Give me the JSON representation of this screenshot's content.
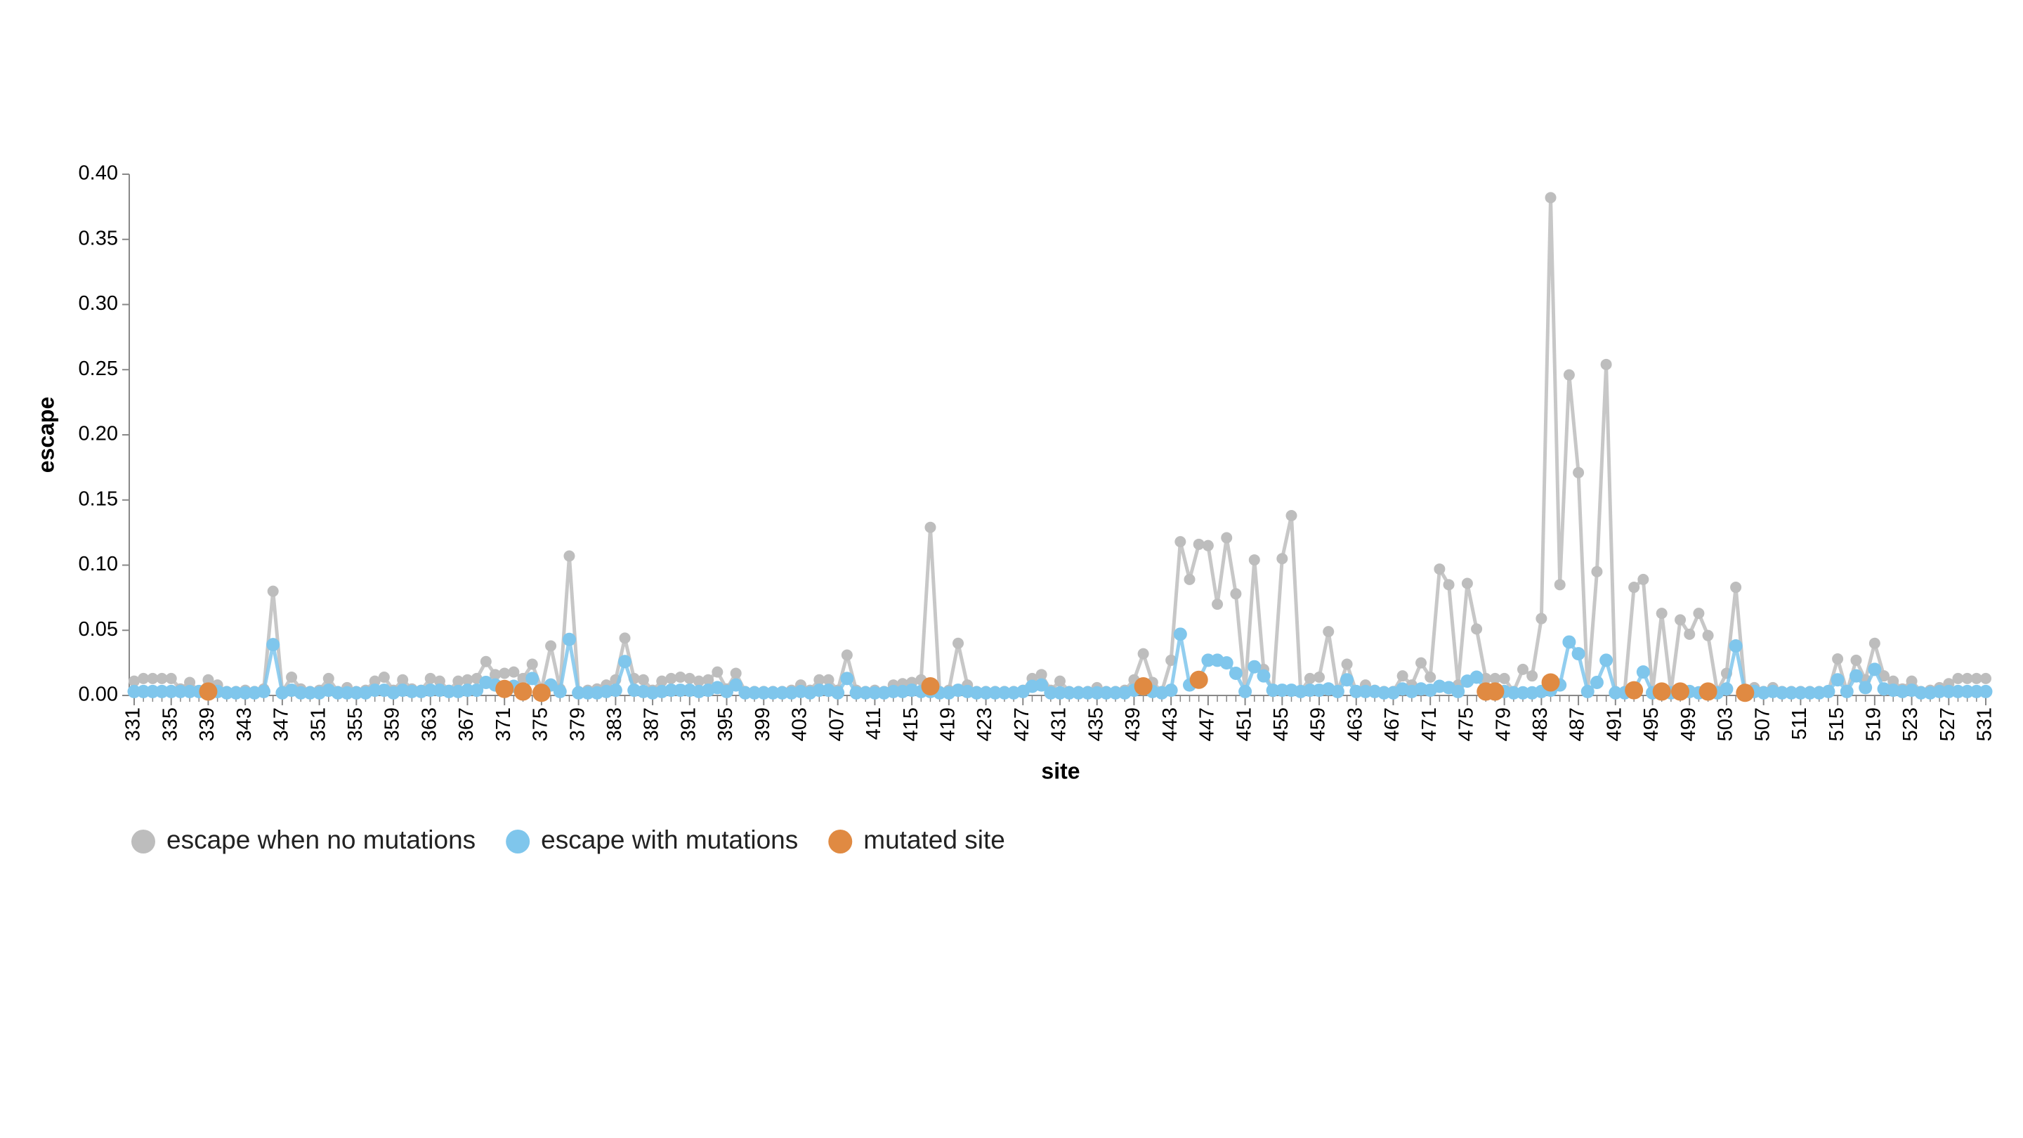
{
  "chart_data": {
    "type": "line",
    "xlabel": "site",
    "ylabel": "escape",
    "x": [
      331,
      332,
      333,
      334,
      335,
      336,
      337,
      338,
      339,
      340,
      341,
      342,
      343,
      344,
      345,
      346,
      347,
      348,
      349,
      350,
      351,
      352,
      353,
      354,
      355,
      356,
      357,
      358,
      359,
      360,
      361,
      362,
      363,
      364,
      365,
      366,
      367,
      368,
      369,
      370,
      371,
      372,
      373,
      374,
      375,
      376,
      377,
      378,
      379,
      380,
      381,
      382,
      383,
      384,
      385,
      386,
      387,
      388,
      389,
      390,
      391,
      392,
      393,
      394,
      395,
      396,
      397,
      398,
      399,
      400,
      401,
      402,
      403,
      404,
      405,
      406,
      407,
      408,
      409,
      410,
      411,
      412,
      413,
      414,
      415,
      416,
      417,
      418,
      419,
      420,
      421,
      422,
      423,
      424,
      425,
      426,
      427,
      428,
      429,
      430,
      431,
      432,
      433,
      434,
      435,
      436,
      437,
      438,
      439,
      440,
      441,
      442,
      443,
      444,
      445,
      446,
      447,
      448,
      449,
      450,
      451,
      452,
      453,
      454,
      455,
      456,
      457,
      458,
      459,
      460,
      461,
      462,
      463,
      464,
      465,
      466,
      467,
      468,
      469,
      470,
      471,
      472,
      473,
      474,
      475,
      476,
      477,
      478,
      479,
      480,
      481,
      482,
      483,
      484,
      485,
      486,
      487,
      488,
      489,
      490,
      491,
      492,
      493,
      494,
      495,
      496,
      497,
      498,
      499,
      500,
      501,
      502,
      503,
      504,
      505,
      506,
      507,
      508,
      509,
      510,
      511,
      512,
      513,
      514,
      515,
      516,
      517,
      518,
      519,
      520,
      521,
      522,
      523,
      524,
      525,
      526,
      527,
      528,
      529,
      530,
      531
    ],
    "series": [
      {
        "name": "escape when no mutations",
        "color": "#bdbdbd",
        "style": "line",
        "values": [
          0.011,
          0.013,
          0.013,
          0.013,
          0.013,
          0.005,
          0.01,
          0.003,
          0.012,
          0.008,
          0.003,
          0.003,
          0.004,
          0.003,
          0.005,
          0.08,
          0.003,
          0.014,
          0.005,
          0.003,
          0.004,
          0.013,
          0.003,
          0.006,
          0.003,
          0.004,
          0.011,
          0.014,
          0.004,
          0.012,
          0.005,
          0.004,
          0.013,
          0.011,
          0.004,
          0.011,
          0.012,
          0.013,
          0.026,
          0.016,
          0.017,
          0.018,
          0.013,
          0.024,
          0.005,
          0.038,
          0.005,
          0.107,
          0.003,
          0.004,
          0.005,
          0.008,
          0.012,
          0.044,
          0.013,
          0.012,
          0.004,
          0.011,
          0.013,
          0.014,
          0.013,
          0.011,
          0.012,
          0.018,
          0.005,
          0.017,
          0.003,
          0.003,
          0.003,
          0.003,
          0.003,
          0.004,
          0.008,
          0.004,
          0.012,
          0.012,
          0.004,
          0.031,
          0.004,
          0.003,
          0.004,
          0.003,
          0.008,
          0.009,
          0.01,
          0.012,
          0.129,
          0.003,
          0.004,
          0.04,
          0.008,
          0.003,
          0.003,
          0.003,
          0.003,
          0.003,
          0.004,
          0.013,
          0.016,
          0.004,
          0.011,
          0.003,
          0.003,
          0.003,
          0.006,
          0.003,
          0.003,
          0.004,
          0.012,
          0.032,
          0.01,
          0.003,
          0.027,
          0.118,
          0.089,
          0.116,
          0.115,
          0.07,
          0.121,
          0.078,
          0.003,
          0.104,
          0.02,
          0.003,
          0.105,
          0.138,
          0.003,
          0.013,
          0.014,
          0.049,
          0.003,
          0.024,
          0.003,
          0.008,
          0.004,
          0.003,
          0.003,
          0.015,
          0.008,
          0.025,
          0.014,
          0.097,
          0.085,
          0.008,
          0.086,
          0.051,
          0.013,
          0.013,
          0.013,
          0.003,
          0.02,
          0.015,
          0.059,
          0.382,
          0.085,
          0.246,
          0.171,
          0.003,
          0.095,
          0.254,
          0.003,
          0.003,
          0.083,
          0.089,
          0.003,
          0.063,
          0.003,
          0.058,
          0.047,
          0.063,
          0.046,
          0.003,
          0.017,
          0.083,
          0.003,
          0.006,
          0.003,
          0.006,
          0.003,
          0.003,
          0.003,
          0.003,
          0.003,
          0.003,
          0.028,
          0.003,
          0.027,
          0.012,
          0.04,
          0.015,
          0.011,
          0.005,
          0.011,
          0.003,
          0.004,
          0.006,
          0.009,
          0.013,
          0.013,
          0.013,
          0.013
        ]
      },
      {
        "name": "escape with mutations",
        "color": "#7fc6ec",
        "style": "line",
        "values": [
          0.003,
          0.003,
          0.003,
          0.003,
          0.003,
          0.003,
          0.003,
          0.003,
          0.003,
          0.003,
          0.002,
          0.002,
          0.002,
          0.002,
          0.003,
          0.039,
          0.002,
          0.004,
          0.002,
          0.002,
          0.002,
          0.004,
          0.002,
          0.002,
          0.002,
          0.002,
          0.004,
          0.004,
          0.002,
          0.004,
          0.003,
          0.003,
          0.004,
          0.004,
          0.003,
          0.003,
          0.004,
          0.004,
          0.01,
          0.008,
          0.005,
          0.007,
          0.003,
          0.013,
          0.002,
          0.008,
          0.003,
          0.043,
          0.002,
          0.002,
          0.002,
          0.003,
          0.004,
          0.026,
          0.004,
          0.003,
          0.002,
          0.003,
          0.004,
          0.004,
          0.004,
          0.003,
          0.004,
          0.006,
          0.003,
          0.008,
          0.002,
          0.002,
          0.002,
          0.002,
          0.002,
          0.002,
          0.003,
          0.002,
          0.004,
          0.004,
          0.002,
          0.013,
          0.002,
          0.002,
          0.002,
          0.002,
          0.003,
          0.003,
          0.004,
          0.003,
          0.003,
          0.002,
          0.002,
          0.004,
          0.003,
          0.002,
          0.002,
          0.002,
          0.002,
          0.002,
          0.003,
          0.007,
          0.008,
          0.002,
          0.002,
          0.002,
          0.002,
          0.002,
          0.002,
          0.002,
          0.002,
          0.002,
          0.004,
          0.005,
          0.003,
          0.002,
          0.004,
          0.047,
          0.008,
          0.012,
          0.027,
          0.027,
          0.025,
          0.017,
          0.003,
          0.022,
          0.015,
          0.004,
          0.004,
          0.004,
          0.003,
          0.004,
          0.004,
          0.005,
          0.003,
          0.012,
          0.003,
          0.003,
          0.003,
          0.002,
          0.002,
          0.005,
          0.003,
          0.005,
          0.004,
          0.007,
          0.006,
          0.003,
          0.011,
          0.014,
          0.004,
          0.003,
          0.003,
          0.002,
          0.002,
          0.002,
          0.003,
          0.004,
          0.008,
          0.041,
          0.032,
          0.003,
          0.01,
          0.027,
          0.002,
          0.002,
          0.004,
          0.018,
          0.002,
          0.003,
          0.002,
          0.003,
          0.003,
          0.002,
          0.003,
          0.002,
          0.005,
          0.038,
          0.002,
          0.003,
          0.002,
          0.003,
          0.002,
          0.002,
          0.002,
          0.002,
          0.002,
          0.003,
          0.012,
          0.003,
          0.015,
          0.006,
          0.02,
          0.005,
          0.004,
          0.003,
          0.004,
          0.002,
          0.002,
          0.003,
          0.003,
          0.003,
          0.003,
          0.003,
          0.003
        ]
      },
      {
        "name": "mutated site",
        "color": "#e08a42",
        "style": "points",
        "x": [
          339,
          371,
          373,
          375,
          417,
          440,
          446,
          477,
          478,
          484,
          493,
          496,
          498,
          501,
          505
        ],
        "values": [
          0.003,
          0.005,
          0.003,
          0.002,
          0.007,
          0.007,
          0.012,
          0.003,
          0.003,
          0.01,
          0.004,
          0.003,
          0.003,
          0.003,
          0.002
        ]
      }
    ],
    "xlim": [
      331,
      531
    ],
    "xticks": [
      331,
      335,
      339,
      343,
      347,
      351,
      355,
      359,
      363,
      367,
      371,
      375,
      379,
      383,
      387,
      391,
      395,
      399,
      403,
      407,
      411,
      415,
      419,
      423,
      427,
      431,
      435,
      439,
      443,
      447,
      451,
      455,
      459,
      463,
      467,
      471,
      475,
      479,
      483,
      487,
      491,
      495,
      499,
      503,
      507,
      511,
      515,
      519,
      523,
      527,
      531
    ],
    "ylim": [
      0,
      0.4
    ],
    "yticks": [
      {
        "value": 0,
        "label": "0.00"
      },
      {
        "value": 0.05,
        "label": "0.05"
      },
      {
        "value": 0.1,
        "label": "0.10"
      },
      {
        "value": 0.15,
        "label": "0.15"
      },
      {
        "value": 0.2,
        "label": "0.20"
      },
      {
        "value": 0.25,
        "label": "0.25"
      },
      {
        "value": 0.3,
        "label": "0.30"
      },
      {
        "value": 0.35,
        "label": "0.35"
      },
      {
        "value": 0.4,
        "label": "0.40"
      }
    ],
    "grid": false,
    "legend": "bottom-left"
  }
}
